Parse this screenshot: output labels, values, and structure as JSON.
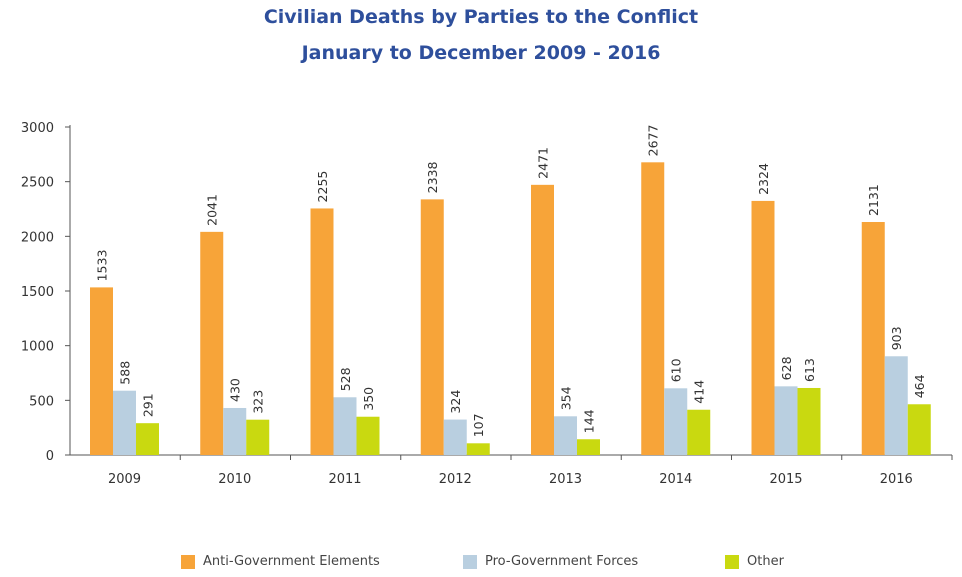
{
  "chart_data": {
    "type": "bar",
    "title": "Civilian Deaths by Parties to the Conflict",
    "subtitle": "January to December 2009 - 2016",
    "categories": [
      "2009",
      "2010",
      "2011",
      "2012",
      "2013",
      "2014",
      "2015",
      "2016"
    ],
    "series": [
      {
        "name": "Anti-Government Elements",
        "color": "#f7a439",
        "values": [
          1533,
          2041,
          2255,
          2338,
          2471,
          2677,
          2324,
          2131
        ]
      },
      {
        "name": "Pro-Government Forces",
        "color": "#b9cfe0",
        "values": [
          588,
          430,
          528,
          324,
          354,
          610,
          628,
          903
        ]
      },
      {
        "name": "Other",
        "color": "#c9d910",
        "values": [
          291,
          323,
          350,
          107,
          144,
          414,
          613,
          464
        ]
      }
    ],
    "yticks": [
      "0",
      "500",
      "1000",
      "1500",
      "2000",
      "2500",
      "3000"
    ],
    "ylim": [
      0,
      3000
    ],
    "grid": false,
    "legend_position": "bottom",
    "data_labels": true
  }
}
